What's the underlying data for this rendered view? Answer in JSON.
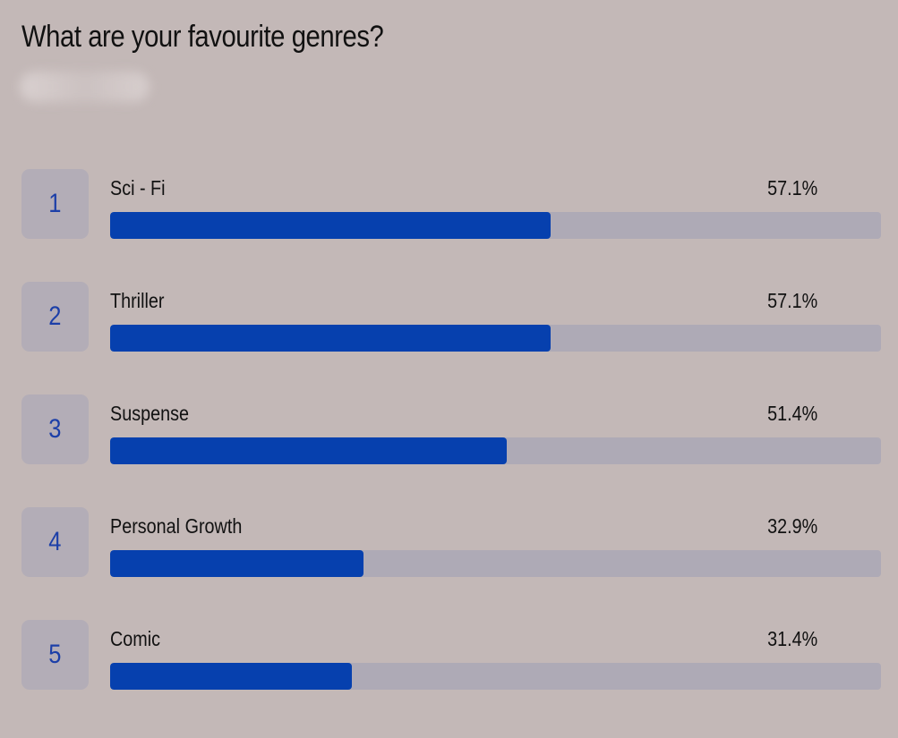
{
  "title": "What are your favourite genres?",
  "colors": {
    "background": "#c3b8b7",
    "accent": "#0640ae",
    "track": "#aeaab6",
    "rank_box": "#b3adb7",
    "rank_text": "#1c3fa8"
  },
  "chart_data": {
    "type": "bar",
    "orientation": "horizontal",
    "title": "What are your favourite genres?",
    "xlim": [
      0,
      100
    ],
    "items": [
      {
        "rank": "1",
        "label": "Sci - Fi",
        "value": 57.1,
        "display": "57.1%"
      },
      {
        "rank": "2",
        "label": "Thriller",
        "value": 57.1,
        "display": "57.1%"
      },
      {
        "rank": "3",
        "label": "Suspense",
        "value": 51.4,
        "display": "51.4%"
      },
      {
        "rank": "4",
        "label": "Personal Growth",
        "value": 32.9,
        "display": "32.9%"
      },
      {
        "rank": "5",
        "label": "Comic",
        "value": 31.4,
        "display": "31.4%"
      }
    ]
  }
}
